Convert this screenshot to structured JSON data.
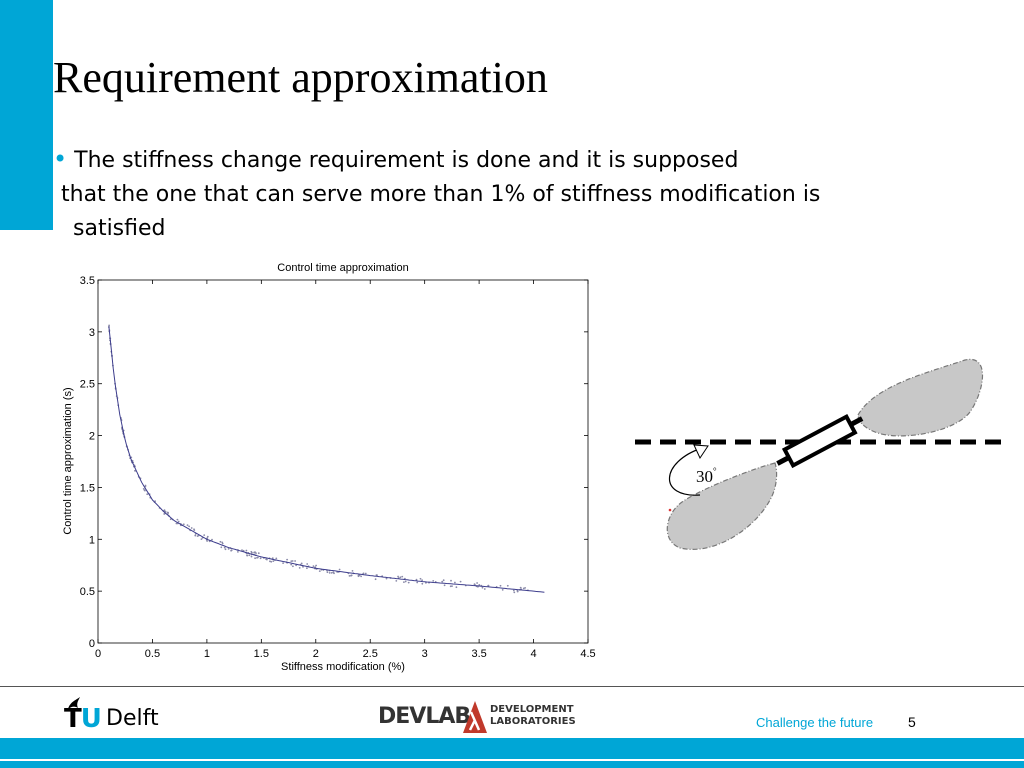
{
  "slide": {
    "title": "Requirement approximation",
    "bullet": {
      "marker": "•",
      "lines": [
        "The stiffness change requirement is done and it is supposed",
        "that the one that can serve more than 1% of stiffness modification is",
        "satisfied"
      ]
    }
  },
  "diagram": {
    "angle_label": "30",
    "angle_unit": "°"
  },
  "footer": {
    "logo_tu": "TU",
    "logo_u": "U",
    "logo_delft": "Delft",
    "logo_devlab": "DEVLAB",
    "logo_devlab_sub1": "DEVELOPMENT",
    "logo_devlab_sub2": "LABORATORIES",
    "tagline": "Challenge the future",
    "page_number": "5"
  },
  "colors": {
    "accent": "#00a6d6",
    "curve": "#3c3c8c",
    "points": "#8a8aa8"
  },
  "chart_data": {
    "type": "line",
    "title": "Control time approximation",
    "xlabel": "Stiffness modification (%)",
    "ylabel": "Control time approximation (s)",
    "xlim": [
      0,
      4.5
    ],
    "ylim": [
      0,
      3.5
    ],
    "xticks": [
      "0",
      "0.5",
      "1",
      "1.5",
      "2",
      "2.5",
      "3",
      "3.5",
      "4",
      "4.5"
    ],
    "yticks": [
      "0",
      "0.5",
      "1",
      "1.5",
      "2",
      "2.5",
      "3",
      "3.5"
    ],
    "grid": false,
    "series": [
      {
        "style": "fitted curve with scattered samples",
        "x": [
          0.1,
          0.15,
          0.2,
          0.25,
          0.3,
          0.4,
          0.5,
          0.6,
          0.7,
          0.8,
          1.0,
          1.2,
          1.5,
          2.0,
          2.5,
          3.0,
          3.5,
          4.0,
          4.1
        ],
        "y": [
          3.05,
          2.55,
          2.2,
          1.95,
          1.78,
          1.55,
          1.38,
          1.27,
          1.18,
          1.12,
          1.0,
          0.92,
          0.83,
          0.72,
          0.65,
          0.59,
          0.55,
          0.5,
          0.49
        ]
      }
    ]
  }
}
